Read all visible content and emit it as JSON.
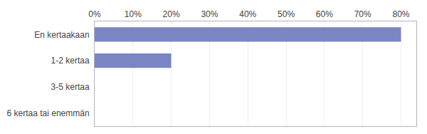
{
  "chart_data": {
    "type": "bar",
    "orientation": "horizontal",
    "categories": [
      "En kertaakaan",
      "1-2 kertaa",
      "3-5 kertaa",
      "6 kertaa tai enemmän"
    ],
    "values": [
      80.0,
      20.0,
      0.0,
      0.0
    ],
    "color": "#7b85c4",
    "xlim": [
      0,
      84
    ],
    "xticks": [
      {
        "value": 0,
        "label": "0%"
      },
      {
        "value": 10,
        "label": "10%"
      },
      {
        "value": 20,
        "label": "20%"
      },
      {
        "value": 30,
        "label": "30%"
      },
      {
        "value": 40,
        "label": "40%"
      },
      {
        "value": 50,
        "label": "50%"
      },
      {
        "value": 60,
        "label": "60%"
      },
      {
        "value": 70,
        "label": "70%"
      },
      {
        "value": 80,
        "label": "80%"
      }
    ],
    "grid": true
  }
}
